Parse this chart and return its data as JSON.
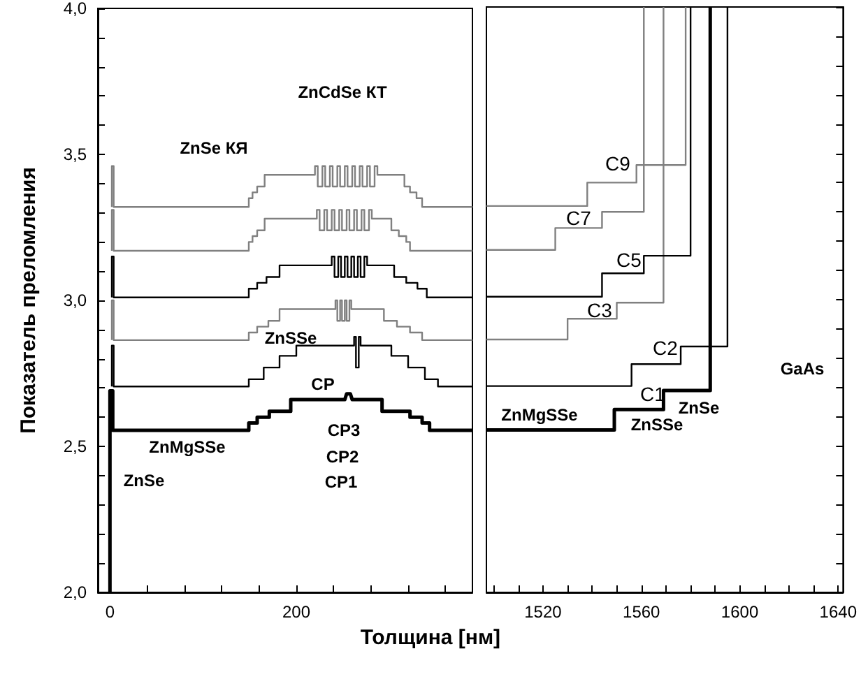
{
  "chart_data": [
    {
      "type": "line",
      "ylabel": "Показатель преломления",
      "xlabel": "Толщина [нм]",
      "xlim": [
        -13,
        389
      ],
      "ylim": [
        2.0,
        4.0
      ],
      "xticks": [
        0,
        {
          "value": 40,
          "label": null
        },
        {
          "value": 80,
          "label": null
        },
        {
          "value": 120,
          "label": null
        },
        {
          "value": 160,
          "label": null
        },
        200,
        {
          "value": 240,
          "label": null
        },
        {
          "value": 280,
          "label": null
        },
        {
          "value": 320,
          "label": null
        },
        {
          "value": 360,
          "label": null
        }
      ],
      "yticks": [
        {
          "value": 2.0,
          "label": "2,0"
        },
        {
          "value": 2.1,
          "label": null
        },
        {
          "value": 2.2,
          "label": null
        },
        {
          "value": 2.3,
          "label": null
        },
        {
          "value": 2.4,
          "label": null
        },
        {
          "value": 2.5,
          "label": "2,5"
        },
        {
          "value": 2.6,
          "label": null
        },
        {
          "value": 2.7,
          "label": null
        },
        {
          "value": 2.8,
          "label": null
        },
        {
          "value": 2.9,
          "label": null
        },
        {
          "value": 3.0,
          "label": "3,0"
        },
        {
          "value": 3.1,
          "label": null
        },
        {
          "value": 3.2,
          "label": null
        },
        {
          "value": 3.3,
          "label": null
        },
        {
          "value": 3.4,
          "label": null
        },
        {
          "value": 3.5,
          "label": "3,5"
        },
        {
          "value": 3.6,
          "label": null
        },
        {
          "value": 3.7,
          "label": null
        },
        {
          "value": 3.8,
          "label": null
        },
        {
          "value": 3.9,
          "label": null
        },
        {
          "value": 4.0,
          "label": "4,0"
        }
      ],
      "series": [
        {
          "color": "#000000",
          "x": [
            0,
            0,
            3,
            3,
            149,
            149,
            158,
            158,
            171,
            171,
            194,
            194,
            252,
            254,
            258,
            260,
            292,
            292,
            322,
            322,
            335,
            335,
            343,
            343,
            389
          ],
          "values": [
            2.0,
            2.69,
            2.69,
            2.555,
            2.555,
            2.58,
            2.58,
            2.6,
            2.6,
            2.62,
            2.62,
            2.66,
            2.66,
            2.68,
            2.68,
            2.66,
            2.66,
            2.62,
            2.62,
            2.6,
            2.6,
            2.58,
            2.58,
            2.555,
            2.555
          ]
        },
        {
          "color": "#000000",
          "x": [
            2,
            2,
            4,
            4,
            149,
            149,
            165,
            165,
            182,
            182,
            200,
            200,
            262,
            262,
            264,
            264,
            267,
            267,
            269,
            269,
            302,
            302,
            320,
            320,
            338,
            338,
            352,
            352,
            389
          ],
          "values": [
            2.705,
            2.845,
            2.845,
            2.705,
            2.705,
            2.73,
            2.73,
            2.77,
            2.77,
            2.81,
            2.81,
            2.845,
            2.845,
            2.875,
            2.875,
            2.77,
            2.77,
            2.875,
            2.875,
            2.845,
            2.845,
            2.81,
            2.81,
            2.77,
            2.77,
            2.73,
            2.73,
            2.705,
            2.705
          ]
        },
        {
          "color": "#808080",
          "x": [
            2,
            2,
            4,
            4,
            149,
            149,
            158,
            158,
            170,
            170,
            182,
            182,
            242,
            242,
            244,
            244,
            247,
            247,
            249,
            249,
            252,
            252,
            254,
            254,
            257,
            257,
            259,
            259,
            294,
            294,
            308,
            308,
            322,
            322,
            335,
            335,
            389
          ],
          "values": [
            2.864,
            3.0,
            3.0,
            2.864,
            2.864,
            2.89,
            2.89,
            2.91,
            2.91,
            2.93,
            2.93,
            2.97,
            2.97,
            3.0,
            3.0,
            2.93,
            2.93,
            3.0,
            3.0,
            2.93,
            2.93,
            3.0,
            3.0,
            2.93,
            2.93,
            3.0,
            3.0,
            2.97,
            2.97,
            2.93,
            2.93,
            2.91,
            2.91,
            2.89,
            2.89,
            2.864,
            2.864
          ]
        },
        {
          "color": "#000000",
          "x": [
            2,
            2,
            4,
            4,
            149,
            149,
            158,
            158,
            168,
            168,
            182,
            182,
            238,
            238,
            241,
            241,
            245,
            245,
            248,
            248,
            252,
            252,
            255,
            255,
            259,
            259,
            262,
            262,
            266,
            266,
            269,
            269,
            273,
            273,
            276,
            276,
            305,
            305,
            318,
            318,
            330,
            330,
            340,
            340,
            389
          ],
          "values": [
            3.01,
            3.15,
            3.15,
            3.01,
            3.01,
            3.04,
            3.04,
            3.06,
            3.06,
            3.08,
            3.08,
            3.12,
            3.12,
            3.15,
            3.15,
            3.08,
            3.08,
            3.15,
            3.15,
            3.08,
            3.08,
            3.15,
            3.15,
            3.08,
            3.08,
            3.15,
            3.15,
            3.08,
            3.08,
            3.15,
            3.15,
            3.08,
            3.08,
            3.15,
            3.15,
            3.12,
            3.12,
            3.08,
            3.08,
            3.06,
            3.06,
            3.04,
            3.04,
            3.01,
            3.01
          ]
        },
        {
          "color": "#808080",
          "x": [
            2,
            2,
            4,
            4,
            149,
            149,
            153,
            153,
            158,
            158,
            166,
            166,
            222,
            222,
            225,
            225,
            230,
            230,
            233,
            233,
            238,
            238,
            241,
            241,
            246,
            246,
            249,
            249,
            254,
            254,
            257,
            257,
            262,
            262,
            265,
            265,
            270,
            270,
            273,
            273,
            278,
            278,
            281,
            281,
            302,
            302,
            310,
            310,
            318,
            318,
            322,
            322,
            389
          ],
          "values": [
            3.17,
            3.31,
            3.31,
            3.17,
            3.17,
            3.2,
            3.2,
            3.22,
            3.22,
            3.24,
            3.24,
            3.28,
            3.28,
            3.31,
            3.31,
            3.24,
            3.24,
            3.31,
            3.31,
            3.24,
            3.24,
            3.31,
            3.31,
            3.24,
            3.24,
            3.31,
            3.31,
            3.24,
            3.24,
            3.31,
            3.31,
            3.24,
            3.24,
            3.31,
            3.31,
            3.24,
            3.24,
            3.31,
            3.31,
            3.24,
            3.24,
            3.31,
            3.31,
            3.28,
            3.28,
            3.24,
            3.24,
            3.22,
            3.22,
            3.2,
            3.2,
            3.17,
            3.17
          ]
        },
        {
          "color": "#808080",
          "x": [
            2,
            2,
            4,
            4,
            149,
            149,
            153,
            153,
            158,
            158,
            166,
            166,
            220,
            220,
            223,
            223,
            228,
            228,
            231,
            231,
            236,
            236,
            239,
            239,
            244,
            244,
            247,
            247,
            252,
            252,
            255,
            255,
            260,
            260,
            263,
            263,
            268,
            268,
            271,
            271,
            276,
            276,
            279,
            279,
            284,
            284,
            287,
            287,
            316,
            316,
            322,
            322,
            329,
            329,
            335,
            335,
            389
          ],
          "values": [
            3.32,
            3.46,
            3.46,
            3.32,
            3.32,
            3.35,
            3.35,
            3.37,
            3.37,
            3.39,
            3.39,
            3.43,
            3.43,
            3.46,
            3.46,
            3.39,
            3.39,
            3.46,
            3.46,
            3.39,
            3.39,
            3.46,
            3.46,
            3.39,
            3.39,
            3.46,
            3.46,
            3.39,
            3.39,
            3.46,
            3.46,
            3.39,
            3.39,
            3.46,
            3.46,
            3.39,
            3.39,
            3.46,
            3.46,
            3.39,
            3.39,
            3.46,
            3.46,
            3.39,
            3.39,
            3.46,
            3.46,
            3.43,
            3.43,
            3.39,
            3.39,
            3.37,
            3.37,
            3.35,
            3.35,
            3.32,
            3.32
          ]
        }
      ],
      "annotations": [
        "ZnCdSe КТ",
        "ZnSe КЯ",
        "ZnSSe",
        "CP",
        "CP3",
        "CP2",
        "CP1",
        "ZnMgSSe",
        "ZnSe"
      ]
    },
    {
      "type": "line",
      "tick_labels": "x",
      "xlim": [
        1497,
        1642
      ],
      "ylim": [
        2.0,
        4.0
      ],
      "xticks": [
        {
          "value": 1500,
          "label": null
        },
        {
          "value": 1510,
          "label": null
        },
        1520,
        {
          "value": 1530,
          "label": null
        },
        {
          "value": 1540,
          "label": null
        },
        {
          "value": 1550,
          "label": null
        },
        1560,
        {
          "value": 1570,
          "label": null
        },
        {
          "value": 1580,
          "label": null
        },
        {
          "value": 1590,
          "label": null
        },
        1600,
        {
          "value": 1610,
          "label": null
        },
        {
          "value": 1620,
          "label": null
        },
        {
          "value": 1630,
          "label": null
        },
        1640
      ],
      "yticks": [
        {
          "value": 2.0,
          "label": null
        },
        {
          "value": 2.1,
          "label": null
        },
        {
          "value": 2.2,
          "label": null
        },
        {
          "value": 2.3,
          "label": null
        },
        {
          "value": 2.4,
          "label": null
        },
        {
          "value": 2.5,
          "label": null
        },
        {
          "value": 2.6,
          "label": null
        },
        {
          "value": 2.7,
          "label": null
        },
        {
          "value": 2.8,
          "label": null
        },
        {
          "value": 2.9,
          "label": null
        },
        {
          "value": 3.0,
          "label": null
        },
        {
          "value": 3.1,
          "label": null
        },
        {
          "value": 3.2,
          "label": null
        },
        {
          "value": 3.3,
          "label": null
        },
        {
          "value": 3.4,
          "label": null
        },
        {
          "value": 3.5,
          "label": null
        },
        {
          "value": 3.6,
          "label": null
        },
        {
          "value": 3.7,
          "label": null
        },
        {
          "value": 3.8,
          "label": null
        },
        {
          "value": 3.9,
          "label": null
        },
        {
          "value": 4.0,
          "label": null
        }
      ],
      "series": [
        {
          "color": "#000000",
          "x": [
            1497,
            1549,
            1549,
            1569,
            1569,
            1588,
            1588
          ],
          "values": [
            2.555,
            2.555,
            2.625,
            2.625,
            2.69,
            2.69,
            4.0
          ]
        },
        {
          "color": "#000000",
          "x": [
            1497,
            1556,
            1556,
            1576,
            1576,
            1595,
            1595
          ],
          "values": [
            2.705,
            2.705,
            2.78,
            2.78,
            2.84,
            2.84,
            4.0
          ]
        },
        {
          "color": "#808080",
          "x": [
            1497,
            1530,
            1530,
            1550,
            1550,
            1569,
            1569
          ],
          "values": [
            2.864,
            2.864,
            2.935,
            2.935,
            2.99,
            2.99,
            4.0
          ]
        },
        {
          "color": "#000000",
          "x": [
            1497,
            1544,
            1544,
            1561,
            1561,
            1580,
            1580
          ],
          "values": [
            3.01,
            3.01,
            3.09,
            3.09,
            3.15,
            3.15,
            4.0
          ]
        },
        {
          "color": "#808080",
          "x": [
            1497,
            1525,
            1525,
            1544,
            1544,
            1561,
            1561
          ],
          "values": [
            3.17,
            3.17,
            3.245,
            3.245,
            3.3,
            3.3,
            4.0
          ]
        },
        {
          "color": "#808080",
          "x": [
            1497,
            1538,
            1538,
            1558,
            1558,
            1578,
            1578
          ],
          "values": [
            3.32,
            3.32,
            3.4,
            3.4,
            3.46,
            3.46,
            4.0
          ]
        }
      ],
      "annotations": [
        "ZnMgSSe",
        "ZnSSe",
        "ZnSe",
        "C1",
        "C2",
        "C3",
        "C5",
        "C7",
        "C9",
        "GaAs"
      ]
    }
  ]
}
